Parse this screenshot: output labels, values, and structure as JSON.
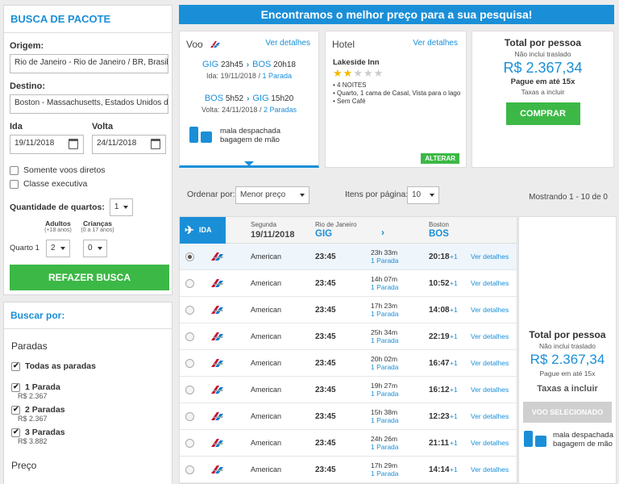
{
  "search": {
    "title": "BUSCA DE PACOTE",
    "origin_label": "Origem:",
    "origin_value": "Rio de Janeiro - Rio de Janeiro / BR, Brasil, Todos",
    "dest_label": "Destino:",
    "dest_value": "Boston - Massachusetts, Estados Unidos da América",
    "ida_label": "Ida",
    "ida_value": "19/11/2018",
    "volta_label": "Volta",
    "volta_value": "24/11/2018",
    "direct_label": "Somente voos diretos",
    "exec_label": "Classe executiva",
    "rooms_label": "Quantidade de quartos:",
    "rooms_value": "1",
    "adults_label": "Adultos",
    "adults_sub": "(+18 anos)",
    "children_label": "Crianças",
    "children_sub": "(0 a 17 anos)",
    "room1_label": "Quarto 1",
    "adults_value": "2",
    "children_value": "0",
    "button": "REFAZER BUSCA"
  },
  "filters": {
    "title": "Buscar por:",
    "stops_title": "Paradas",
    "all_label": "Todas as paradas",
    "items": [
      {
        "label": "1 Parada",
        "price": "R$ 2.367"
      },
      {
        "label": "2 Paradas",
        "price": "R$ 2.367"
      },
      {
        "label": "3 Paradas",
        "price": "R$ 3.882"
      }
    ],
    "price_title": "Preço"
  },
  "banner": "Encontramos o melhor preço para a sua pesquisa!",
  "voo": {
    "title": "Voo",
    "details": "Ver detalhes",
    "out": {
      "from": "GIG",
      "dep": "23h45",
      "to": "BOS",
      "arr": "20h18",
      "prefix": "Ida:",
      "date": "19/11/2018",
      "stops": "1 Parada"
    },
    "ret": {
      "from": "BOS",
      "dep": "5h52",
      "to": "GIG",
      "arr": "15h20",
      "prefix": "Volta:",
      "date": "24/11/2018",
      "stops": "2 Paradas"
    },
    "bag1": "mala despachada",
    "bag2": "bagagem de mão"
  },
  "hotel": {
    "title": "Hotel",
    "details": "Ver detalhes",
    "name": "Lakeside Inn",
    "stars": 2,
    "stars_max": 5,
    "items": [
      "4 NOITES",
      "Quarto, 1 cama de Casal, Vista para o lago",
      "Sem Café"
    ],
    "change": "ALTERAR"
  },
  "total": {
    "title": "Total por pessoa",
    "note": "Não inclui traslado",
    "price": "R$ 2.367,34",
    "pay": "Pague em até 15x",
    "tax": "Taxas a incluir",
    "buy": "COMPRAR"
  },
  "sort": {
    "label": "Ordenar por:",
    "value": "Menor preço",
    "perpage_label": "Itens por página:",
    "perpage_value": "10",
    "showing": "Mostrando 1 - 10 de 0"
  },
  "results": {
    "ida_label": "IDA",
    "day": "Segunda",
    "date": "19/11/2018",
    "from_city": "Rio de Janeiro",
    "from_code": "GIG",
    "to_city": "Boston",
    "to_code": "BOS",
    "rows": [
      {
        "airline": "American",
        "dep": "23:45",
        "dur": "23h 33m",
        "stops": "1 Parada",
        "arr": "20:18",
        "plus": "+1",
        "details": "Ver detalhes",
        "selected": true
      },
      {
        "airline": "American",
        "dep": "23:45",
        "dur": "14h 07m",
        "stops": "1 Parada",
        "arr": "10:52",
        "plus": "+1",
        "details": "Ver detalhes",
        "selected": false
      },
      {
        "airline": "American",
        "dep": "23:45",
        "dur": "17h 23m",
        "stops": "1 Parada",
        "arr": "14:08",
        "plus": "+1",
        "details": "Ver detalhes",
        "selected": false
      },
      {
        "airline": "American",
        "dep": "23:45",
        "dur": "25h 34m",
        "stops": "1 Parada",
        "arr": "22:19",
        "plus": "+1",
        "details": "Ver detalhes",
        "selected": false
      },
      {
        "airline": "American",
        "dep": "23:45",
        "dur": "20h 02m",
        "stops": "1 Parada",
        "arr": "16:47",
        "plus": "+1",
        "details": "Ver detalhes",
        "selected": false
      },
      {
        "airline": "American",
        "dep": "23:45",
        "dur": "19h 27m",
        "stops": "1 Parada",
        "arr": "16:12",
        "plus": "+1",
        "details": "Ver detalhes",
        "selected": false
      },
      {
        "airline": "American",
        "dep": "23:45",
        "dur": "15h 38m",
        "stops": "1 Parada",
        "arr": "12:23",
        "plus": "+1",
        "details": "Ver detalhes",
        "selected": false
      },
      {
        "airline": "American",
        "dep": "23:45",
        "dur": "24h 26m",
        "stops": "1 Parada",
        "arr": "21:11",
        "plus": "+1",
        "details": "Ver detalhes",
        "selected": false
      },
      {
        "airline": "American",
        "dep": "23:45",
        "dur": "17h 29m",
        "stops": "1 Parada",
        "arr": "14:14",
        "plus": "+1",
        "details": "Ver detalhes",
        "selected": false
      }
    ]
  },
  "right": {
    "title": "Total por pessoa",
    "note": "Não inclui traslado",
    "price": "R$ 2.367,34",
    "pay": "Pague em até 15x",
    "tax": "Taxas a incluir",
    "button": "VOO SELECIONADO",
    "bag1": "mala despachada",
    "bag2": "bagagem de mão"
  },
  "colors": {
    "accent": "#1a8fd8",
    "green": "#3cb846",
    "star": "#f2b900"
  }
}
